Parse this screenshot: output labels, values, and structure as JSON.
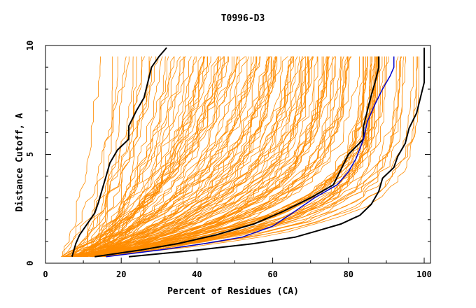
{
  "chart_data": {
    "type": "line",
    "title": "T0996-D3",
    "xlabel": "Percent of Residues (CA)",
    "ylabel": "Distance Cutoff, A",
    "xlim": [
      0,
      100
    ],
    "ylim": [
      0,
      10
    ],
    "xticks": [
      "0",
      "20",
      "40",
      "60",
      "80",
      "100"
    ],
    "yticks": [
      "0",
      "5",
      "10"
    ],
    "grid": false,
    "colors": {
      "background": "#ffffff",
      "orange": "#ff8c00",
      "black": "#000000",
      "blue": "#0000cc"
    },
    "highlight_series": [
      {
        "color": "#000000",
        "points": [
          [
            7,
            0.3
          ],
          [
            8,
            0.9
          ],
          [
            9,
            1.3
          ],
          [
            11,
            1.8
          ],
          [
            13,
            2.3
          ],
          [
            14,
            2.8
          ],
          [
            15,
            3.4
          ],
          [
            16,
            4.0
          ],
          [
            17,
            4.6
          ],
          [
            19,
            5.2
          ],
          [
            22,
            5.7
          ],
          [
            22,
            6.3
          ],
          [
            24,
            7.0
          ],
          [
            26,
            7.6
          ],
          [
            27,
            8.3
          ],
          [
            28,
            9.0
          ],
          [
            30,
            9.5
          ],
          [
            32,
            9.9
          ]
        ]
      },
      {
        "color": "#000000",
        "points": [
          [
            13,
            0.3
          ],
          [
            25,
            0.6
          ],
          [
            35,
            0.9
          ],
          [
            45,
            1.3
          ],
          [
            55,
            1.8
          ],
          [
            63,
            2.4
          ],
          [
            70,
            3.0
          ],
          [
            76,
            3.6
          ],
          [
            78,
            4.3
          ],
          [
            80,
            5.0
          ],
          [
            84,
            5.7
          ],
          [
            84,
            6.3
          ],
          [
            85,
            7.0
          ],
          [
            86,
            7.7
          ],
          [
            87,
            8.3
          ],
          [
            88,
            9.0
          ],
          [
            88,
            9.5
          ]
        ]
      },
      {
        "color": "#0000cc",
        "points": [
          [
            16,
            0.3
          ],
          [
            30,
            0.6
          ],
          [
            42,
            0.9
          ],
          [
            52,
            1.2
          ],
          [
            60,
            1.7
          ],
          [
            66,
            2.4
          ],
          [
            71,
            3.0
          ],
          [
            77,
            3.6
          ],
          [
            80,
            4.2
          ],
          [
            82,
            4.8
          ],
          [
            84,
            5.7
          ],
          [
            85,
            6.5
          ],
          [
            87,
            7.3
          ],
          [
            89,
            8.0
          ],
          [
            91,
            8.6
          ],
          [
            92,
            9.0
          ],
          [
            92,
            9.5
          ]
        ]
      },
      {
        "color": "#000000",
        "points": [
          [
            22,
            0.3
          ],
          [
            40,
            0.6
          ],
          [
            55,
            0.9
          ],
          [
            66,
            1.2
          ],
          [
            72,
            1.5
          ],
          [
            78,
            1.8
          ],
          [
            83,
            2.2
          ],
          [
            86,
            2.7
          ],
          [
            88,
            3.3
          ],
          [
            89,
            3.9
          ],
          [
            92,
            4.4
          ],
          [
            93,
            4.9
          ],
          [
            95,
            5.5
          ],
          [
            96,
            6.2
          ],
          [
            98,
            6.9
          ],
          [
            99,
            7.6
          ],
          [
            100,
            8.3
          ],
          [
            100,
            9.0
          ],
          [
            100,
            9.9
          ]
        ]
      }
    ]
  }
}
